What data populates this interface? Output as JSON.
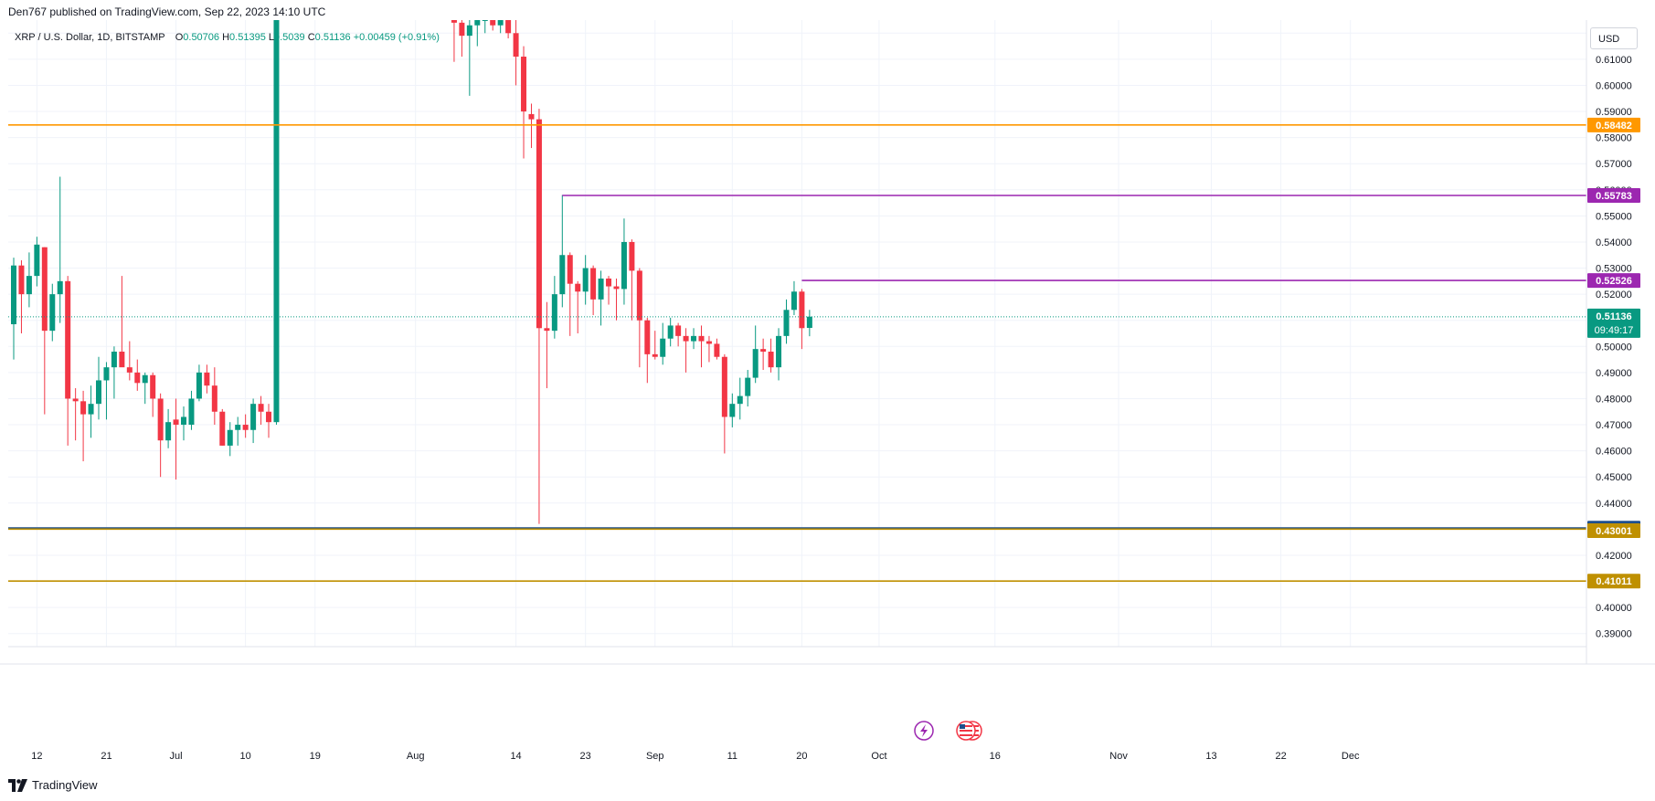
{
  "header": {
    "published": "Den767 published on TradingView.com, Sep 22, 2023 14:10 UTC"
  },
  "legend": {
    "symbol": "XRP / U.S. Dollar, 1D, BITSTAMP",
    "open_label": "O",
    "open": "0.50706",
    "high_label": "H",
    "high": "0.51395",
    "low_label": "L",
    "low": "0.5039",
    "close_label": "C",
    "close": "0.51136",
    "change": "+0.00459 (+0.91%)"
  },
  "currency": "USD",
  "footer": {
    "brand": "TradingView"
  },
  "colors": {
    "up": "#089981",
    "down": "#f23645",
    "orange": "#ff9800",
    "purple": "#9c27b0",
    "olive": "#808000",
    "gold": "#bf9000",
    "blue": "#1e4f8c"
  },
  "icons": [
    "lightning-event-icon",
    "us-flag-event-icon"
  ],
  "chart_data": {
    "type": "candlestick",
    "y_range": [
      0.385,
      0.625
    ],
    "y_ticks": [
      "0.62000",
      "0.61000",
      "0.60000",
      "0.59000",
      "0.58000",
      "0.57000",
      "0.56000",
      "0.55000",
      "0.54000",
      "0.53000",
      "0.52000",
      "0.51000",
      "0.50000",
      "0.49000",
      "0.48000",
      "0.47000",
      "0.46000",
      "0.45000",
      "0.44000",
      "0.43000",
      "0.42000",
      "0.41000",
      "0.40000",
      "0.39000"
    ],
    "x_ticks": [
      {
        "day": 3,
        "label": "12"
      },
      {
        "day": 12,
        "label": "21"
      },
      {
        "day": 21,
        "label": "Jul"
      },
      {
        "day": 30,
        "label": "10"
      },
      {
        "day": 39,
        "label": "19"
      },
      {
        "day": 52,
        "label": "Aug"
      },
      {
        "day": 65,
        "label": "14"
      },
      {
        "day": 74,
        "label": "23"
      },
      {
        "day": 83,
        "label": "Sep"
      },
      {
        "day": 93,
        "label": "11"
      },
      {
        "day": 102,
        "label": "20"
      },
      {
        "day": 112,
        "label": "Oct"
      },
      {
        "day": 127,
        "label": "16"
      },
      {
        "day": 143,
        "label": "Nov"
      },
      {
        "day": 155,
        "label": "13"
      },
      {
        "day": 164,
        "label": "22"
      },
      {
        "day": 173,
        "label": "Dec"
      }
    ],
    "candles": [
      {
        "d": 0,
        "o": 0.5085,
        "h": 0.534,
        "l": 0.495,
        "c": 0.531
      },
      {
        "d": 1,
        "o": 0.531,
        "h": 0.533,
        "l": 0.505,
        "c": 0.52
      },
      {
        "d": 2,
        "o": 0.52,
        "h": 0.536,
        "l": 0.515,
        "c": 0.527
      },
      {
        "d": 3,
        "o": 0.527,
        "h": 0.542,
        "l": 0.523,
        "c": 0.539
      },
      {
        "d": 4,
        "o": 0.538,
        "h": 0.538,
        "l": 0.474,
        "c": 0.506
      },
      {
        "d": 5,
        "o": 0.506,
        "h": 0.524,
        "l": 0.502,
        "c": 0.52
      },
      {
        "d": 6,
        "o": 0.52,
        "h": 0.565,
        "l": 0.509,
        "c": 0.525
      },
      {
        "d": 7,
        "o": 0.525,
        "h": 0.527,
        "l": 0.462,
        "c": 0.48
      },
      {
        "d": 8,
        "o": 0.48,
        "h": 0.484,
        "l": 0.464,
        "c": 0.479
      },
      {
        "d": 9,
        "o": 0.479,
        "h": 0.483,
        "l": 0.456,
        "c": 0.474
      },
      {
        "d": 10,
        "o": 0.474,
        "h": 0.485,
        "l": 0.465,
        "c": 0.478
      },
      {
        "d": 11,
        "o": 0.478,
        "h": 0.496,
        "l": 0.472,
        "c": 0.487
      },
      {
        "d": 12,
        "o": 0.487,
        "h": 0.494,
        "l": 0.472,
        "c": 0.492
      },
      {
        "d": 13,
        "o": 0.492,
        "h": 0.5,
        "l": 0.48,
        "c": 0.498
      },
      {
        "d": 14,
        "o": 0.498,
        "h": 0.527,
        "l": 0.493,
        "c": 0.492
      },
      {
        "d": 15,
        "o": 0.492,
        "h": 0.502,
        "l": 0.487,
        "c": 0.49
      },
      {
        "d": 16,
        "o": 0.49,
        "h": 0.495,
        "l": 0.483,
        "c": 0.486
      },
      {
        "d": 17,
        "o": 0.486,
        "h": 0.49,
        "l": 0.478,
        "c": 0.489
      },
      {
        "d": 18,
        "o": 0.489,
        "h": 0.49,
        "l": 0.473,
        "c": 0.48
      },
      {
        "d": 19,
        "o": 0.48,
        "h": 0.482,
        "l": 0.45,
        "c": 0.464
      },
      {
        "d": 20,
        "o": 0.464,
        "h": 0.476,
        "l": 0.461,
        "c": 0.471
      },
      {
        "d": 21,
        "o": 0.472,
        "h": 0.48,
        "l": 0.449,
        "c": 0.47
      },
      {
        "d": 22,
        "o": 0.47,
        "h": 0.477,
        "l": 0.464,
        "c": 0.473
      },
      {
        "d": 23,
        "o": 0.47,
        "h": 0.483,
        "l": 0.468,
        "c": 0.48
      },
      {
        "d": 24,
        "o": 0.48,
        "h": 0.493,
        "l": 0.479,
        "c": 0.49
      },
      {
        "d": 25,
        "o": 0.49,
        "h": 0.493,
        "l": 0.482,
        "c": 0.485
      },
      {
        "d": 26,
        "o": 0.485,
        "h": 0.492,
        "l": 0.47,
        "c": 0.475
      },
      {
        "d": 27,
        "o": 0.475,
        "h": 0.476,
        "l": 0.462,
        "c": 0.462
      },
      {
        "d": 28,
        "o": 0.462,
        "h": 0.471,
        "l": 0.458,
        "c": 0.468
      },
      {
        "d": 29,
        "o": 0.468,
        "h": 0.473,
        "l": 0.462,
        "c": 0.47
      },
      {
        "d": 30,
        "o": 0.47,
        "h": 0.474,
        "l": 0.465,
        "c": 0.468
      },
      {
        "d": 31,
        "o": 0.468,
        "h": 0.48,
        "l": 0.463,
        "c": 0.478
      },
      {
        "d": 32,
        "o": 0.478,
        "h": 0.481,
        "l": 0.47,
        "c": 0.475
      },
      {
        "d": 33,
        "o": 0.475,
        "h": 0.478,
        "l": 0.465,
        "c": 0.471
      },
      {
        "d": 34,
        "o": 0.471,
        "h": 0.938,
        "l": 0.47,
        "c": 0.817
      },
      {
        "d": 57,
        "o": 0.65,
        "h": 0.665,
        "l": 0.609,
        "c": 0.624
      },
      {
        "d": 58,
        "o": 0.624,
        "h": 0.638,
        "l": 0.611,
        "c": 0.619
      },
      {
        "d": 59,
        "o": 0.619,
        "h": 0.625,
        "l": 0.596,
        "c": 0.623
      },
      {
        "d": 60,
        "o": 0.623,
        "h": 0.63,
        "l": 0.615,
        "c": 0.625
      },
      {
        "d": 61,
        "o": 0.625,
        "h": 0.64,
        "l": 0.62,
        "c": 0.629
      },
      {
        "d": 62,
        "o": 0.629,
        "h": 0.633,
        "l": 0.621,
        "c": 0.623
      },
      {
        "d": 63,
        "o": 0.623,
        "h": 0.631,
        "l": 0.62,
        "c": 0.626
      },
      {
        "d": 64,
        "o": 0.626,
        "h": 0.635,
        "l": 0.618,
        "c": 0.62
      },
      {
        "d": 65,
        "o": 0.62,
        "h": 0.639,
        "l": 0.6,
        "c": 0.611
      },
      {
        "d": 66,
        "o": 0.611,
        "h": 0.615,
        "l": 0.572,
        "c": 0.59
      },
      {
        "d": 67,
        "o": 0.589,
        "h": 0.593,
        "l": 0.576,
        "c": 0.587
      },
      {
        "d": 68,
        "o": 0.587,
        "h": 0.591,
        "l": 0.432,
        "c": 0.507
      },
      {
        "d": 69,
        "o": 0.507,
        "h": 0.517,
        "l": 0.484,
        "c": 0.506
      },
      {
        "d": 70,
        "o": 0.506,
        "h": 0.527,
        "l": 0.503,
        "c": 0.52
      },
      {
        "d": 71,
        "o": 0.52,
        "h": 0.558,
        "l": 0.515,
        "c": 0.535
      },
      {
        "d": 72,
        "o": 0.535,
        "h": 0.536,
        "l": 0.504,
        "c": 0.524
      },
      {
        "d": 73,
        "o": 0.524,
        "h": 0.525,
        "l": 0.505,
        "c": 0.521
      },
      {
        "d": 74,
        "o": 0.521,
        "h": 0.535,
        "l": 0.516,
        "c": 0.53
      },
      {
        "d": 75,
        "o": 0.53,
        "h": 0.531,
        "l": 0.512,
        "c": 0.518
      },
      {
        "d": 76,
        "o": 0.518,
        "h": 0.529,
        "l": 0.508,
        "c": 0.526
      },
      {
        "d": 77,
        "o": 0.526,
        "h": 0.527,
        "l": 0.516,
        "c": 0.523
      },
      {
        "d": 78,
        "o": 0.523,
        "h": 0.526,
        "l": 0.51,
        "c": 0.522
      },
      {
        "d": 79,
        "o": 0.522,
        "h": 0.549,
        "l": 0.516,
        "c": 0.54
      },
      {
        "d": 80,
        "o": 0.54,
        "h": 0.541,
        "l": 0.51,
        "c": 0.529
      },
      {
        "d": 81,
        "o": 0.529,
        "h": 0.53,
        "l": 0.492,
        "c": 0.51
      },
      {
        "d": 82,
        "o": 0.51,
        "h": 0.511,
        "l": 0.486,
        "c": 0.497
      },
      {
        "d": 83,
        "o": 0.497,
        "h": 0.506,
        "l": 0.495,
        "c": 0.496
      },
      {
        "d": 84,
        "o": 0.496,
        "h": 0.509,
        "l": 0.493,
        "c": 0.503
      },
      {
        "d": 85,
        "o": 0.503,
        "h": 0.511,
        "l": 0.5,
        "c": 0.508
      },
      {
        "d": 86,
        "o": 0.508,
        "h": 0.509,
        "l": 0.5,
        "c": 0.504
      },
      {
        "d": 87,
        "o": 0.504,
        "h": 0.507,
        "l": 0.49,
        "c": 0.502
      },
      {
        "d": 88,
        "o": 0.502,
        "h": 0.507,
        "l": 0.499,
        "c": 0.504
      },
      {
        "d": 89,
        "o": 0.504,
        "h": 0.508,
        "l": 0.492,
        "c": 0.502
      },
      {
        "d": 90,
        "o": 0.502,
        "h": 0.504,
        "l": 0.494,
        "c": 0.501
      },
      {
        "d": 91,
        "o": 0.501,
        "h": 0.503,
        "l": 0.495,
        "c": 0.496
      },
      {
        "d": 92,
        "o": 0.496,
        "h": 0.497,
        "l": 0.459,
        "c": 0.473
      },
      {
        "d": 93,
        "o": 0.473,
        "h": 0.482,
        "l": 0.469,
        "c": 0.478
      },
      {
        "d": 94,
        "o": 0.478,
        "h": 0.488,
        "l": 0.472,
        "c": 0.481
      },
      {
        "d": 95,
        "o": 0.481,
        "h": 0.491,
        "l": 0.477,
        "c": 0.488
      },
      {
        "d": 96,
        "o": 0.488,
        "h": 0.508,
        "l": 0.486,
        "c": 0.499
      },
      {
        "d": 97,
        "o": 0.499,
        "h": 0.503,
        "l": 0.491,
        "c": 0.498
      },
      {
        "d": 98,
        "o": 0.498,
        "h": 0.503,
        "l": 0.49,
        "c": 0.492
      },
      {
        "d": 99,
        "o": 0.492,
        "h": 0.507,
        "l": 0.487,
        "c": 0.504
      },
      {
        "d": 100,
        "o": 0.504,
        "h": 0.518,
        "l": 0.501,
        "c": 0.514
      },
      {
        "d": 101,
        "o": 0.514,
        "h": 0.525,
        "l": 0.512,
        "c": 0.521
      },
      {
        "d": 102,
        "o": 0.521,
        "h": 0.522,
        "l": 0.499,
        "c": 0.507
      },
      {
        "d": 103,
        "o": 0.5071,
        "h": 0.514,
        "l": 0.5039,
        "c": 0.5114
      }
    ],
    "levels": [
      {
        "name": "orange-resistance",
        "value": 0.58482,
        "label": "0.58482",
        "color": "#ff9800",
        "from_day": -2
      },
      {
        "name": "purple-high",
        "value": 0.55783,
        "label": "0.55783",
        "color": "#9c27b0",
        "from_day": 71
      },
      {
        "name": "purple-mid",
        "value": 0.52526,
        "label": "0.52526",
        "color": "#9c27b0",
        "from_day": 102
      },
      {
        "name": "blue-support",
        "value": 0.43038,
        "label": "0.43038",
        "color": "#1e4f8c",
        "from_day": -2
      },
      {
        "name": "olive-support",
        "value": 0.43001,
        "label": "0.43001",
        "color": "#bf9000",
        "from_day": -2
      },
      {
        "name": "gold-support",
        "value": 0.41011,
        "label": "0.41011",
        "color": "#bf9000",
        "from_day": -2
      }
    ],
    "last_price": {
      "value": 0.51136,
      "label": "0.51136",
      "countdown": "09:49:17",
      "color": "#089981"
    }
  }
}
